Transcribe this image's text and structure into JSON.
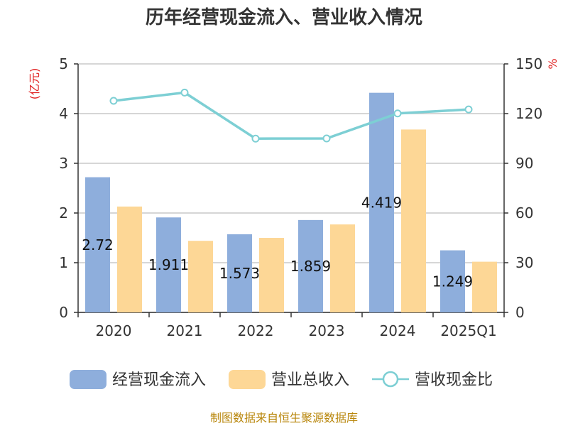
{
  "chart_data": {
    "type": "bar",
    "title": "历年经营现金流入、营业收入情况",
    "categories": [
      "2020",
      "2021",
      "2022",
      "2023",
      "2024",
      "2025Q1"
    ],
    "series": [
      {
        "name": "经营现金流入",
        "type": "bar",
        "axis": "left",
        "color": "#8eaedc",
        "values": [
          2.72,
          1.911,
          1.573,
          1.859,
          4.419,
          1.249
        ],
        "labels": [
          "2.72",
          "1.911",
          "1.573",
          "1.859",
          "4.419",
          "1.249"
        ]
      },
      {
        "name": "营业总收入",
        "type": "bar",
        "axis": "left",
        "color": "#fdd796",
        "values": [
          2.13,
          1.44,
          1.5,
          1.77,
          3.68,
          1.02
        ]
      },
      {
        "name": "营收现金比",
        "type": "line",
        "axis": "right",
        "color": "#7dcfd4",
        "values": [
          127.7,
          132.7,
          104.9,
          105.0,
          120.1,
          122.5
        ]
      }
    ],
    "y_left": {
      "unit": "(亿元)",
      "ylim": [
        0,
        5
      ],
      "ticks": [
        "0",
        "1",
        "2",
        "3",
        "4",
        "5"
      ]
    },
    "y_right": {
      "unit": "%",
      "ylim": [
        0,
        150
      ],
      "ticks": [
        "0",
        "30",
        "60",
        "90",
        "120",
        "150"
      ]
    },
    "grid": true,
    "legend_position": "bottom",
    "source": "制图数据来自恒生聚源数据库"
  }
}
